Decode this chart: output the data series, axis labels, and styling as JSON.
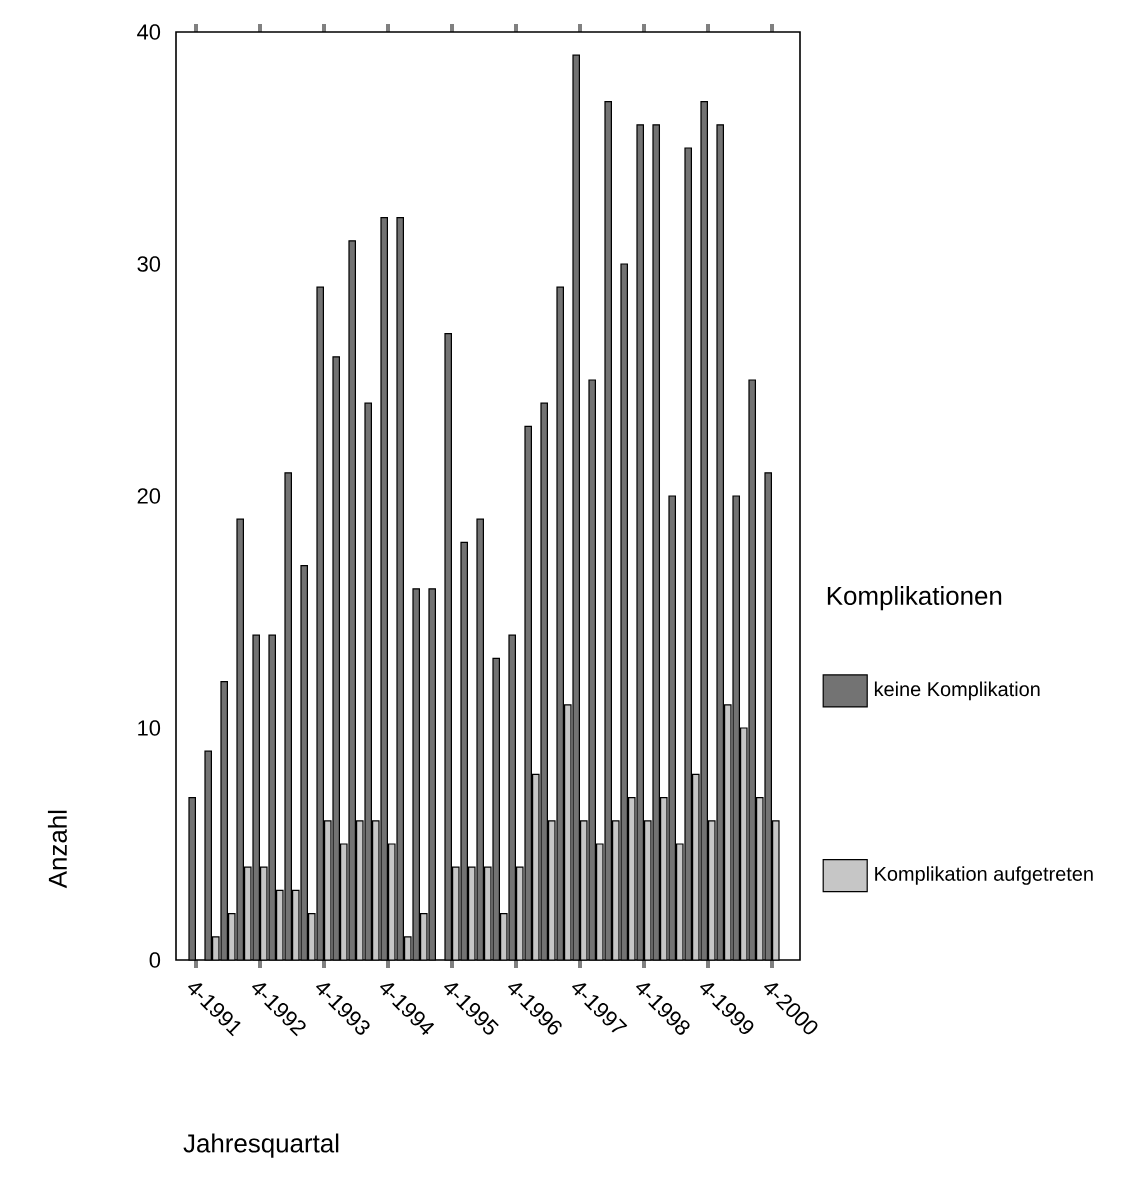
{
  "chart_data": {
    "type": "bar",
    "xlabel": "Jahresquartal",
    "ylabel": "Anzahl",
    "legend_title": "Komplikationen",
    "legend": "right",
    "categories": [
      "4-1991",
      null,
      null,
      null,
      "4-1992",
      null,
      null,
      null,
      "4-1993",
      null,
      null,
      null,
      "4-1994",
      null,
      null,
      null,
      "4-1995",
      null,
      null,
      null,
      "4-1996",
      null,
      null,
      null,
      "4-1997",
      null,
      null,
      null,
      "4-1998",
      null,
      null,
      null,
      "4-1999",
      null,
      null,
      null,
      "4-2000"
    ],
    "series": [
      {
        "name": "keine Komplikation",
        "color": "#737373",
        "values": [
          7,
          9,
          12,
          19,
          14,
          14,
          21,
          17,
          29,
          26,
          31,
          24,
          32,
          32,
          16,
          16,
          27,
          18,
          19,
          13,
          14,
          23,
          24,
          29,
          39,
          25,
          37,
          30,
          36,
          36,
          20,
          35,
          37,
          36,
          20,
          25,
          21
        ]
      },
      {
        "name": "Komplikation aufgetreten",
        "color": "#c6c6c6",
        "values": [
          null,
          1,
          2,
          4,
          4,
          3,
          3,
          2,
          6,
          5,
          6,
          6,
          5,
          1,
          2,
          null,
          4,
          4,
          4,
          2,
          4,
          8,
          6,
          11,
          6,
          5,
          6,
          7,
          6,
          7,
          5,
          8,
          6,
          11,
          10,
          7,
          6
        ]
      }
    ],
    "ylim": [
      0,
      40
    ],
    "yticks": [
      0,
      10,
      20,
      30,
      40
    ]
  }
}
